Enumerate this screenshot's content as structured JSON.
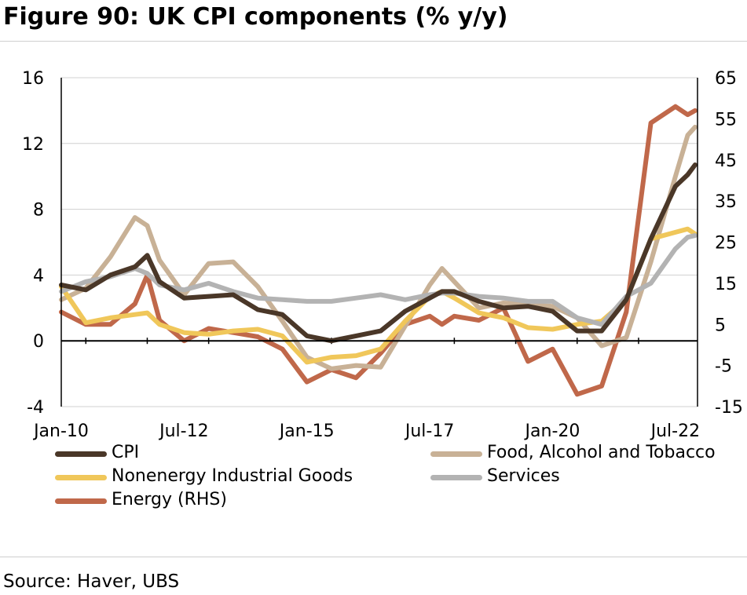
{
  "title": "Figure 90: UK CPI components (% y/y)",
  "source": "Source: Haver, UBS",
  "chart_data": {
    "type": "line",
    "title": "Figure 90: UK CPI components (% y/y)",
    "x_tick_labels": [
      "Jan-10",
      "Jul-12",
      "Jan-15",
      "Jul-17",
      "Jan-20",
      "Jul-22"
    ],
    "x_range": [
      "Jan-10",
      "Dec-22"
    ],
    "y_left": {
      "ticks": [
        -4,
        0,
        4,
        8,
        12,
        16
      ],
      "range": [
        -4,
        16
      ]
    },
    "y_right": {
      "ticks": [
        -15,
        -5,
        5,
        15,
        25,
        35,
        45,
        55,
        65
      ],
      "range": [
        -15,
        65
      ]
    },
    "grid": true,
    "legend_position": "bottom",
    "series": [
      {
        "name": "CPI",
        "axis": "left",
        "color": "#4a3728",
        "x": [
          2010.0,
          2010.5,
          2011.0,
          2011.5,
          2011.75,
          2012.0,
          2012.5,
          2013.0,
          2013.5,
          2014.0,
          2014.5,
          2015.0,
          2015.5,
          2016.0,
          2016.5,
          2017.0,
          2017.5,
          2017.75,
          2018.0,
          2018.5,
          2019.0,
          2019.5,
          2020.0,
          2020.5,
          2021.0,
          2021.5,
          2022.0,
          2022.5,
          2022.75,
          2022.9
        ],
        "values": [
          3.4,
          3.1,
          4.0,
          4.5,
          5.2,
          3.6,
          2.6,
          2.7,
          2.8,
          1.9,
          1.6,
          0.3,
          0.0,
          0.3,
          0.6,
          1.8,
          2.6,
          3.0,
          3.0,
          2.4,
          2.0,
          2.1,
          1.8,
          0.6,
          0.6,
          2.5,
          6.2,
          9.4,
          10.1,
          10.7
        ]
      },
      {
        "name": "Food, Alcohol and Tobacco",
        "axis": "left",
        "color": "#c8b196",
        "x": [
          2010.0,
          2010.5,
          2011.0,
          2011.5,
          2011.75,
          2012.0,
          2012.5,
          2013.0,
          2013.5,
          2014.0,
          2014.5,
          2015.0,
          2015.5,
          2016.0,
          2016.5,
          2017.0,
          2017.5,
          2017.75,
          2018.0,
          2018.5,
          2019.0,
          2019.5,
          2020.0,
          2020.5,
          2021.0,
          2021.5,
          2022.0,
          2022.5,
          2022.75,
          2022.9
        ],
        "values": [
          2.5,
          3.2,
          5.1,
          7.5,
          7.0,
          4.9,
          2.8,
          4.7,
          4.8,
          3.3,
          1.2,
          -1.0,
          -1.7,
          -1.5,
          -1.6,
          0.9,
          3.4,
          4.4,
          3.6,
          2.0,
          2.3,
          2.2,
          2.1,
          1.4,
          -0.3,
          0.2,
          4.8,
          10.0,
          12.5,
          13.0
        ]
      },
      {
        "name": "Nonenergy Industrial Goods",
        "axis": "left",
        "color": "#f0c75a",
        "x": [
          2010.0,
          2010.5,
          2011.0,
          2011.5,
          2011.75,
          2012.0,
          2012.5,
          2013.0,
          2013.5,
          2014.0,
          2014.5,
          2015.0,
          2015.5,
          2016.0,
          2016.5,
          2017.0,
          2017.5,
          2017.75,
          2018.0,
          2018.5,
          2019.0,
          2019.5,
          2020.0,
          2020.5,
          2021.0,
          2021.5,
          2022.0,
          2022.5,
          2022.75,
          2022.9
        ],
        "values": [
          3.3,
          1.1,
          1.4,
          1.6,
          1.7,
          1.0,
          0.5,
          0.4,
          0.6,
          0.7,
          0.3,
          -1.3,
          -1.0,
          -0.9,
          -0.5,
          1.2,
          2.7,
          3.0,
          2.6,
          1.7,
          1.4,
          0.8,
          0.7,
          1.0,
          1.2,
          2.5,
          6.2,
          6.6,
          6.8,
          6.5
        ]
      },
      {
        "name": "Services",
        "axis": "left",
        "color": "#b3b3b3",
        "x": [
          2010.0,
          2010.5,
          2011.0,
          2011.5,
          2011.75,
          2012.0,
          2012.5,
          2013.0,
          2013.5,
          2014.0,
          2014.5,
          2015.0,
          2015.5,
          2016.0,
          2016.5,
          2017.0,
          2017.5,
          2017.75,
          2018.0,
          2018.5,
          2019.0,
          2019.5,
          2020.0,
          2020.5,
          2021.0,
          2021.5,
          2022.0,
          2022.5,
          2022.75,
          2022.9
        ],
        "values": [
          3.0,
          3.6,
          3.9,
          4.4,
          4.1,
          3.4,
          3.1,
          3.5,
          3.0,
          2.6,
          2.5,
          2.4,
          2.4,
          2.6,
          2.8,
          2.5,
          2.8,
          2.9,
          2.9,
          2.7,
          2.6,
          2.4,
          2.4,
          1.4,
          1.0,
          2.7,
          3.5,
          5.6,
          6.3,
          6.4
        ]
      },
      {
        "name": "Energy (RHS)",
        "axis": "right",
        "color": "#c0684a",
        "x": [
          2010.0,
          2010.5,
          2011.0,
          2011.5,
          2011.75,
          2012.0,
          2012.5,
          2013.0,
          2013.5,
          2014.0,
          2014.5,
          2015.0,
          2015.5,
          2016.0,
          2016.5,
          2017.0,
          2017.5,
          2017.75,
          2018.0,
          2018.5,
          2019.0,
          2019.5,
          2020.0,
          2020.5,
          2021.0,
          2021.5,
          2022.0,
          2022.5,
          2022.75,
          2022.9
        ],
        "values": [
          8,
          5,
          5,
          10,
          17,
          6,
          1,
          4,
          3,
          2,
          -1,
          -9,
          -6,
          -8,
          -2,
          5,
          7,
          5,
          7,
          6,
          9,
          -4,
          -1,
          -12,
          -10,
          8,
          54,
          58,
          56,
          57
        ]
      }
    ]
  }
}
